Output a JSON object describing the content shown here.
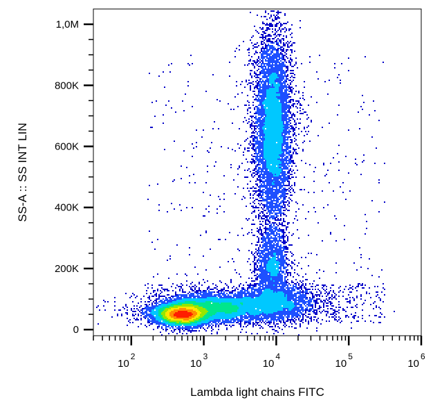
{
  "chart_data": {
    "type": "scatter",
    "subtype": "flow-cytometry-density-dot-plot",
    "xlabel": "Lambda light chains FITC",
    "ylabel": "SS-A :: SS INT LIN",
    "x_scale": "log",
    "y_scale": "linear",
    "xlim": [
      30,
      1000000
    ],
    "ylim": [
      -20000,
      1050000
    ],
    "x_ticks": [
      {
        "base": "10",
        "exp": "2",
        "value": 100
      },
      {
        "base": "10",
        "exp": "3",
        "value": 1000
      },
      {
        "base": "10",
        "exp": "4",
        "value": 10000
      },
      {
        "base": "10",
        "exp": "5",
        "value": 100000
      },
      {
        "base": "10",
        "exp": "6",
        "value": 1000000
      }
    ],
    "y_ticks": [
      {
        "label": "0",
        "value": 0
      },
      {
        "label": "200K",
        "value": 200000
      },
      {
        "label": "400K",
        "value": 400000
      },
      {
        "label": "600K",
        "value": 600000
      },
      {
        "label": "800K",
        "value": 800000
      },
      {
        "label": "1,0M",
        "value": 1000000
      }
    ],
    "grid": false,
    "colormap": [
      "#0000c8",
      "#1e50ff",
      "#00c8ff",
      "#00e68c",
      "#96e600",
      "#ffe600",
      "#ff8c00",
      "#ff1e00"
    ],
    "populations": [
      {
        "x_center": 500,
        "y_center": 50000,
        "x_spread_decades": 0.17,
        "y_spread": 16000,
        "weight": 0.33
      },
      {
        "x_center": 1500,
        "y_center": 72000,
        "x_spread_decades": 0.35,
        "y_spread": 22000,
        "weight": 0.2
      },
      {
        "x_center": 10000,
        "y_center": 90000,
        "x_spread_decades": 0.25,
        "y_spread": 30000,
        "weight": 0.1
      },
      {
        "x_center": 9000,
        "y_center": 660000,
        "x_spread_decades": 0.12,
        "y_spread": 150000,
        "weight": 0.3
      },
      {
        "x_center": 9000,
        "y_center": 210000,
        "x_spread_decades": 0.1,
        "y_spread": 55000,
        "weight": 0.07
      }
    ]
  }
}
